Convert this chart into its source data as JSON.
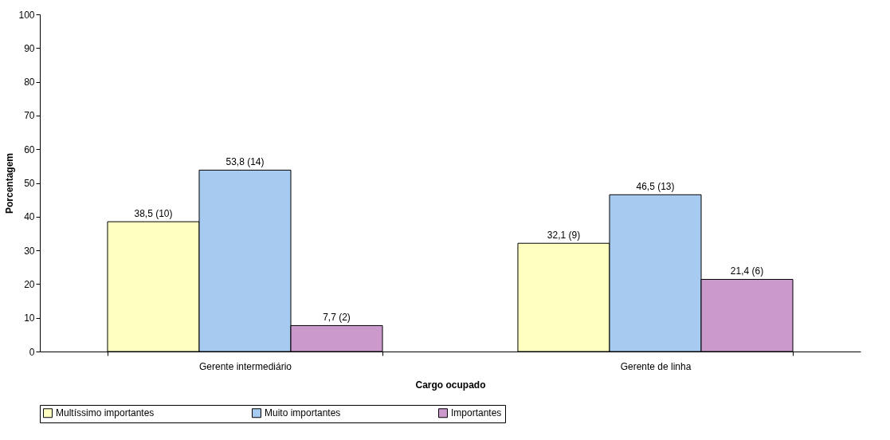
{
  "chart_data": {
    "type": "bar",
    "xlabel": "Cargo ocupado",
    "ylabel": "Porcentagem",
    "categories": [
      "Gerente intermediário",
      "Gerente de linha"
    ],
    "series": [
      {
        "name": "Multíssimo importantes",
        "color": "#ffffc0",
        "values": [
          38.5,
          32.1
        ],
        "value_labels": [
          "38,5 (10)",
          "32,1 (9)"
        ]
      },
      {
        "name": "Muito importantes",
        "color": "#a6caf0",
        "values": [
          53.8,
          46.5
        ],
        "value_labels": [
          "53,8 (14)",
          "46,5 (13)"
        ]
      },
      {
        "name": "Importantes",
        "color": "#cc99cc",
        "values": [
          7.7,
          21.4
        ],
        "value_labels": [
          "7,7 (2)",
          "21,4 (6)"
        ]
      }
    ],
    "ylim": [
      0,
      100
    ],
    "yticks": [
      0,
      10,
      20,
      30,
      40,
      50,
      60,
      70,
      80,
      90,
      100
    ],
    "grid": false,
    "legend": "bottom"
  }
}
